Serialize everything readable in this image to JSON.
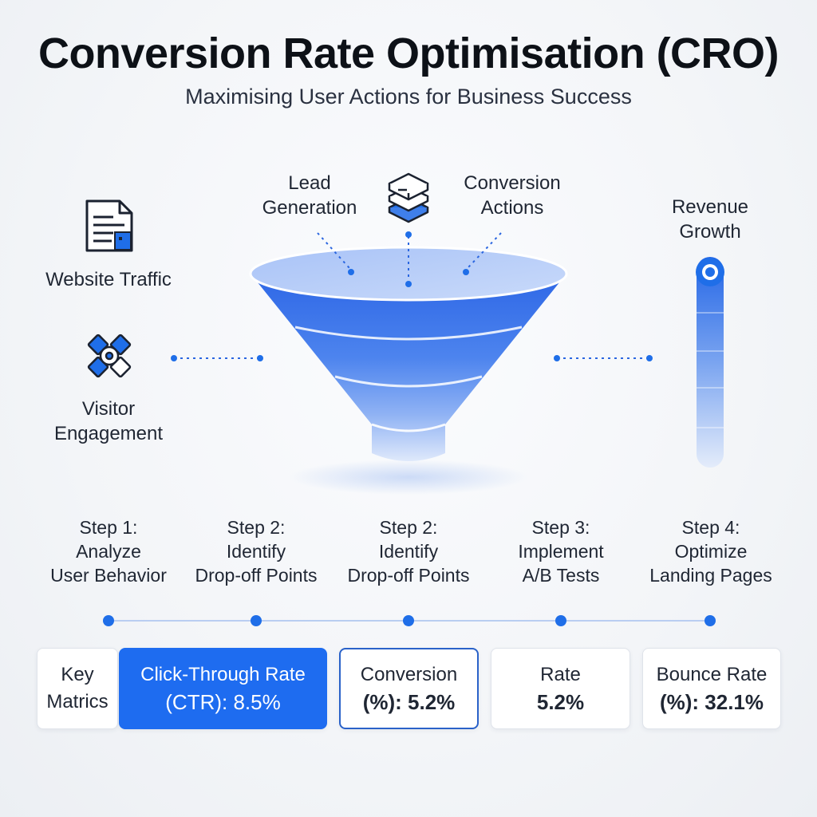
{
  "title": "Conversion Rate Optimisation (CRO)",
  "subtitle": "Maximising User Actions for Business Success",
  "diagram": {
    "labels": {
      "lead_generation": [
        "Lead",
        "Generation"
      ],
      "conversion_actions": [
        "Conversion",
        "Actions"
      ],
      "revenue_growth": [
        "Revenue",
        "Growth"
      ],
      "website_traffic": "Website Traffic",
      "visitor_engagement": [
        "Visitor",
        "Engagement"
      ]
    },
    "icons": {
      "website_traffic": "document-icon",
      "visitor_engagement": "engagement-icon",
      "lead_generation": "cube-stack-icon",
      "revenue_growth": "target-marker-icon"
    },
    "colors": {
      "accent": "#1e6cf0",
      "funnel_top": "#2f6be8",
      "funnel_bottom": "#dbe7fb"
    }
  },
  "steps": [
    {
      "line1": "Step 1:",
      "line2": "Analyze",
      "line3": "User Behavior"
    },
    {
      "line1": "Step 2:",
      "line2": "Identify",
      "line3": "Drop-off Points"
    },
    {
      "line1": "Step 2:",
      "line2": "Identify",
      "line3": "Drop-off Points"
    },
    {
      "line1": "Step 3:",
      "line2": "Implement",
      "line3": "A/B Tests"
    },
    {
      "line1": "Step 4:",
      "line2": "Optimize",
      "line3": "Landing Pages"
    }
  ],
  "metrics": {
    "key_label": [
      "Key",
      "Matrics"
    ],
    "ctr": [
      "Click-Through Rate",
      "(CTR): 8.5%"
    ],
    "conversion": [
      "Conversion",
      "(%): 5.2%"
    ],
    "rate": [
      "Rate",
      "5.2%"
    ],
    "bounce": [
      "Bounce Rate",
      "(%): 32.1%"
    ]
  }
}
